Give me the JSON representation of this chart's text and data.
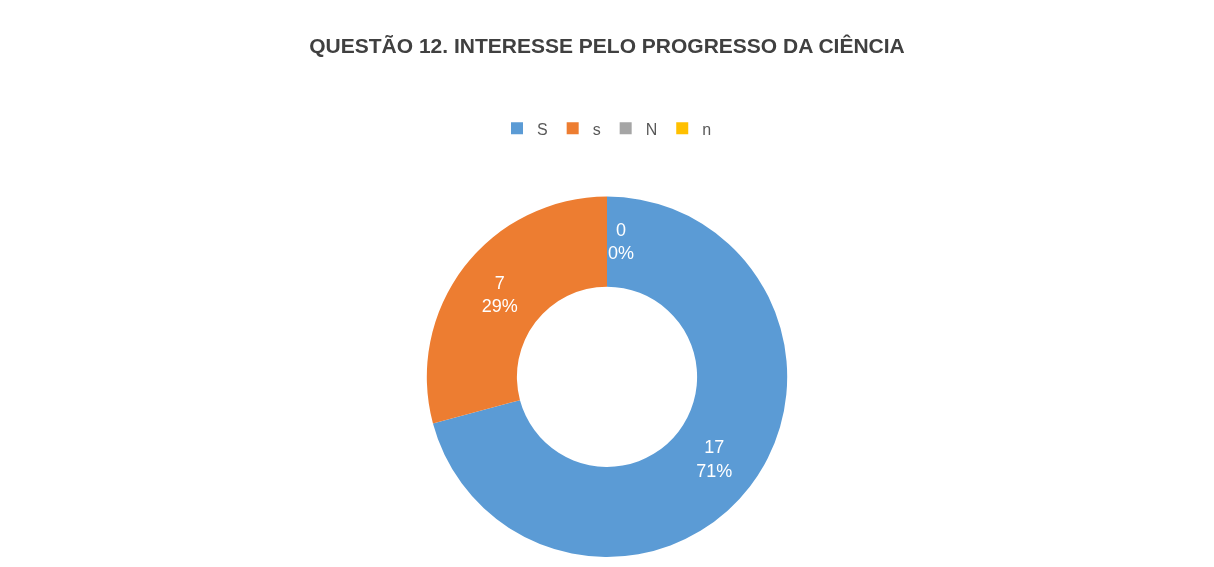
{
  "chart_data": {
    "type": "donut",
    "title": "QUESTÃO 12. INTERESSE PELO PROGRESSO DA CIÊNCIA",
    "categories": [
      "S",
      "s",
      "N",
      "n"
    ],
    "values": [
      17,
      7,
      0,
      0
    ],
    "colors": [
      "#5b9bd5",
      "#ed7d31",
      "#a5a5a5",
      "#ffc000"
    ],
    "value_labels": [
      "17\n71%",
      "7\n29%",
      "0\n0%",
      null
    ],
    "legend": "top"
  }
}
